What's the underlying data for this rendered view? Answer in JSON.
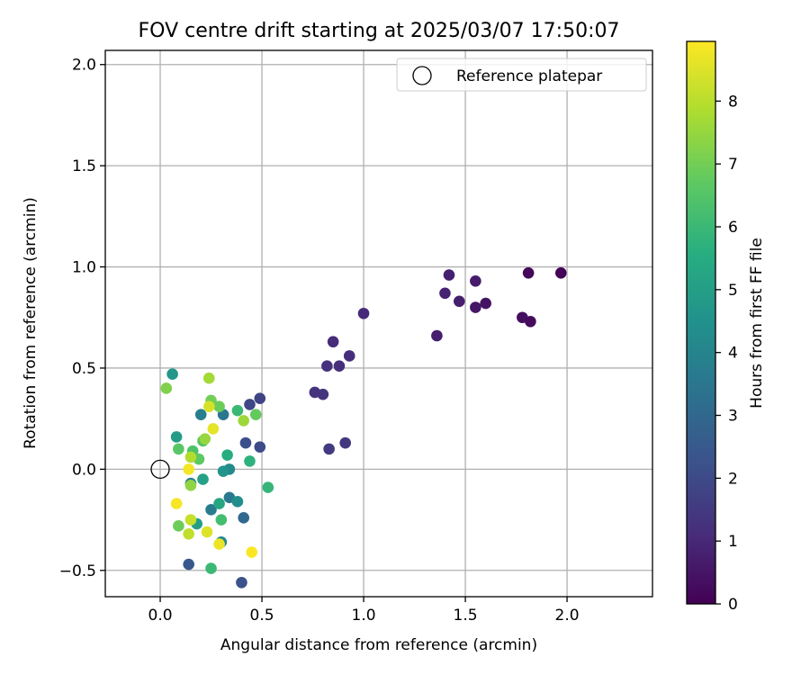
{
  "chart_data": {
    "type": "scatter",
    "title": "FOV centre drift starting at 2025/03/07 17:50:07",
    "xlabel": "Angular distance from reference (arcmin)",
    "ylabel": "Rotation from reference (arcmin)",
    "xlim": [
      -0.27,
      2.42
    ],
    "ylim": [
      -0.63,
      2.07
    ],
    "xticks": [
      0.0,
      0.5,
      1.0,
      1.5,
      2.0
    ],
    "xtick_labels": [
      "0.0",
      "0.5",
      "1.0",
      "1.5",
      "2.0"
    ],
    "yticks": [
      -0.5,
      0.0,
      0.5,
      1.0,
      1.5,
      2.0
    ],
    "ytick_labels": [
      "−0.5",
      "0.0",
      "0.5",
      "1.0",
      "1.5",
      "2.0"
    ],
    "grid": true,
    "legend": {
      "position": "top-right",
      "label": "Reference platepar",
      "marker": "open-circle"
    },
    "reference_point": {
      "x": 0.0,
      "y": 0.0
    },
    "colorbar": {
      "label": "Hours from first FF file",
      "colormap": "viridis",
      "min": 0,
      "max": 8.95,
      "ticks": [
        0,
        1,
        2,
        3,
        4,
        5,
        6,
        7,
        8
      ],
      "tick_labels": [
        "0",
        "1",
        "2",
        "3",
        "4",
        "5",
        "6",
        "7",
        "8"
      ]
    },
    "points": [
      {
        "x": 1.97,
        "y": 0.97,
        "hours": 0.05
      },
      {
        "x": 1.81,
        "y": 0.97,
        "hours": 0.15
      },
      {
        "x": 1.82,
        "y": 0.73,
        "hours": 0.25
      },
      {
        "x": 1.78,
        "y": 0.75,
        "hours": 0.35
      },
      {
        "x": 1.6,
        "y": 0.82,
        "hours": 0.45
      },
      {
        "x": 1.55,
        "y": 0.8,
        "hours": 0.55
      },
      {
        "x": 1.55,
        "y": 0.93,
        "hours": 0.65
      },
      {
        "x": 1.47,
        "y": 0.83,
        "hours": 0.75
      },
      {
        "x": 1.42,
        "y": 0.96,
        "hours": 0.8
      },
      {
        "x": 1.4,
        "y": 0.87,
        "hours": 0.85
      },
      {
        "x": 1.36,
        "y": 0.66,
        "hours": 0.75
      },
      {
        "x": 1.0,
        "y": 0.77,
        "hours": 1.05
      },
      {
        "x": 0.93,
        "y": 0.56,
        "hours": 1.15
      },
      {
        "x": 0.88,
        "y": 0.51,
        "hours": 1.2
      },
      {
        "x": 0.85,
        "y": 0.63,
        "hours": 1.1
      },
      {
        "x": 0.82,
        "y": 0.51,
        "hours": 1.25
      },
      {
        "x": 0.8,
        "y": 0.37,
        "hours": 1.35
      },
      {
        "x": 0.76,
        "y": 0.38,
        "hours": 1.3
      },
      {
        "x": 0.91,
        "y": 0.13,
        "hours": 1.45
      },
      {
        "x": 0.83,
        "y": 0.1,
        "hours": 1.55
      },
      {
        "x": 0.49,
        "y": 0.35,
        "hours": 1.8
      },
      {
        "x": 0.44,
        "y": 0.32,
        "hours": 1.9
      },
      {
        "x": 0.49,
        "y": 0.11,
        "hours": 2.05
      },
      {
        "x": 0.42,
        "y": 0.13,
        "hours": 2.15
      },
      {
        "x": 0.4,
        "y": -0.56,
        "hours": 2.25
      },
      {
        "x": 0.14,
        "y": -0.47,
        "hours": 2.45
      },
      {
        "x": 0.41,
        "y": -0.24,
        "hours": 3.0
      },
      {
        "x": 0.31,
        "y": 0.27,
        "hours": 3.5
      },
      {
        "x": 0.2,
        "y": 0.27,
        "hours": 3.8
      },
      {
        "x": 0.34,
        "y": -0.14,
        "hours": 3.6
      },
      {
        "x": 0.25,
        "y": -0.2,
        "hours": 3.7
      },
      {
        "x": 0.15,
        "y": -0.07,
        "hours": 3.9
      },
      {
        "x": 0.3,
        "y": -0.36,
        "hours": 4.1
      },
      {
        "x": 0.34,
        "y": 0.0,
        "hours": 4.2
      },
      {
        "x": 0.38,
        "y": -0.16,
        "hours": 4.4
      },
      {
        "x": 0.31,
        "y": -0.01,
        "hours": 4.6
      },
      {
        "x": 0.06,
        "y": 0.47,
        "hours": 4.7
      },
      {
        "x": 0.08,
        "y": 0.16,
        "hours": 4.9
      },
      {
        "x": 0.18,
        "y": -0.27,
        "hours": 5.0
      },
      {
        "x": 0.21,
        "y": -0.05,
        "hours": 5.1
      },
      {
        "x": 0.29,
        "y": -0.17,
        "hours": 5.3
      },
      {
        "x": 0.33,
        "y": 0.07,
        "hours": 5.5
      },
      {
        "x": 0.44,
        "y": 0.04,
        "hours": 5.7
      },
      {
        "x": 0.53,
        "y": -0.09,
        "hours": 5.9
      },
      {
        "x": 0.38,
        "y": 0.29,
        "hours": 6.0
      },
      {
        "x": 0.3,
        "y": -0.25,
        "hours": 6.2
      },
      {
        "x": 0.25,
        "y": -0.49,
        "hours": 6.0
      },
      {
        "x": 0.21,
        "y": 0.14,
        "hours": 6.5
      },
      {
        "x": 0.16,
        "y": 0.09,
        "hours": 6.4
      },
      {
        "x": 0.09,
        "y": 0.1,
        "hours": 6.6
      },
      {
        "x": 0.19,
        "y": 0.05,
        "hours": 6.7
      },
      {
        "x": 0.47,
        "y": 0.27,
        "hours": 6.8
      },
      {
        "x": 0.29,
        "y": 0.31,
        "hours": 6.9
      },
      {
        "x": 0.25,
        "y": 0.34,
        "hours": 7.0
      },
      {
        "x": 0.09,
        "y": -0.28,
        "hours": 6.9
      },
      {
        "x": 0.03,
        "y": 0.4,
        "hours": 7.2
      },
      {
        "x": 0.15,
        "y": -0.08,
        "hours": 7.4
      },
      {
        "x": 0.22,
        "y": 0.15,
        "hours": 7.5
      },
      {
        "x": 0.41,
        "y": 0.24,
        "hours": 7.6
      },
      {
        "x": 0.24,
        "y": 0.45,
        "hours": 7.7
      },
      {
        "x": 0.15,
        "y": 0.06,
        "hours": 7.9
      },
      {
        "x": 0.14,
        "y": -0.32,
        "hours": 8.1
      },
      {
        "x": 0.15,
        "y": -0.25,
        "hours": 8.2
      },
      {
        "x": 0.24,
        "y": 0.31,
        "hours": 8.4
      },
      {
        "x": 0.23,
        "y": -0.31,
        "hours": 8.5
      },
      {
        "x": 0.26,
        "y": 0.2,
        "hours": 8.6
      },
      {
        "x": 0.29,
        "y": -0.37,
        "hours": 8.7
      },
      {
        "x": 0.14,
        "y": 0.0,
        "hours": 8.8
      },
      {
        "x": 0.08,
        "y": -0.17,
        "hours": 8.85
      },
      {
        "x": 0.45,
        "y": -0.41,
        "hours": 8.9
      }
    ]
  }
}
